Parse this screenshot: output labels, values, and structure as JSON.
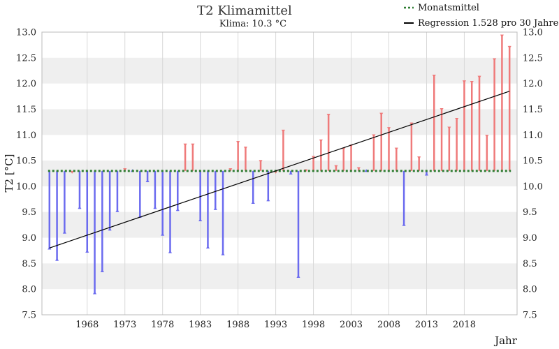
{
  "chart_data": {
    "type": "bar",
    "title": "T2 Klimamittel",
    "subtitle": "Klima: 10.3 °C",
    "ylabel": "T2 [°C]",
    "xlabel": "Jahr",
    "baseline": 10.3,
    "ylim": [
      7.5,
      13.0
    ],
    "xlim": [
      1962,
      2025
    ],
    "y_ticks": [
      "7.5",
      "8.0",
      "8.5",
      "9.0",
      "9.5",
      "10.0",
      "10.5",
      "11.0",
      "11.5",
      "12.0",
      "12.5",
      "13.0"
    ],
    "x_ticks": [
      "1968",
      "1973",
      "1978",
      "1983",
      "1988",
      "1993",
      "1998",
      "2003",
      "2008",
      "2013",
      "2018"
    ],
    "grid": true,
    "legend_position": "top-right",
    "legend": {
      "monthly": "Monatsmittel",
      "regression": "Regression 1.528 pro 30 Jahre"
    },
    "colors": {
      "above": "#ef7a7a",
      "below": "#6b6bef",
      "baseline": "#2e7d32",
      "regression": "#000000",
      "band": "#efefef"
    },
    "regression": {
      "x": [
        1963,
        2024
      ],
      "y": [
        8.8,
        11.85
      ]
    },
    "x": [
      1963,
      1964,
      1965,
      1966,
      1967,
      1968,
      1969,
      1970,
      1971,
      1972,
      1973,
      1974,
      1975,
      1976,
      1977,
      1978,
      1979,
      1980,
      1981,
      1982,
      1983,
      1984,
      1985,
      1986,
      1987,
      1988,
      1989,
      1990,
      1991,
      1992,
      1993,
      1994,
      1995,
      1996,
      1997,
      1998,
      1999,
      2000,
      2001,
      2002,
      2003,
      2004,
      2005,
      2006,
      2007,
      2008,
      2009,
      2010,
      2011,
      2012,
      2013,
      2014,
      2015,
      2016,
      2017,
      2018,
      2019,
      2020,
      2021,
      2022,
      2023,
      2024
    ],
    "values": [
      8.77,
      8.55,
      9.08,
      10.3,
      9.56,
      8.71,
      7.9,
      8.33,
      9.14,
      9.5,
      10.35,
      10.28,
      9.39,
      10.08,
      9.56,
      9.04,
      8.7,
      9.52,
      10.83,
      10.83,
      9.32,
      8.79,
      9.54,
      8.66,
      10.35,
      10.88,
      10.77,
      9.66,
      10.51,
      9.71,
      10.3,
      11.1,
      10.23,
      8.22,
      10.33,
      10.59,
      10.91,
      11.41,
      10.41,
      10.75,
      10.81,
      10.37,
      10.28,
      11.01,
      11.43,
      11.15,
      10.75,
      9.23,
      11.24,
      10.58,
      10.21,
      12.17,
      11.52,
      11.16,
      11.33,
      12.06,
      12.05,
      12.15,
      11.0,
      12.49,
      12.95,
      12.73
    ]
  }
}
